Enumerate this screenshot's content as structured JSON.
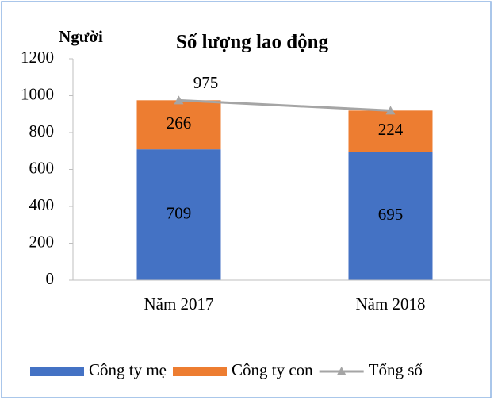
{
  "chart_data": {
    "type": "bar",
    "stacked": true,
    "title": "Số lượng lao động",
    "y_label": "Người",
    "categories": [
      "Năm 2017",
      "Năm 2018"
    ],
    "series": [
      {
        "name": "Công ty mẹ",
        "type": "bar",
        "color": "#4472c4",
        "values": [
          709,
          695
        ]
      },
      {
        "name": "Công ty con",
        "type": "bar",
        "color": "#ed7d31",
        "values": [
          266,
          224
        ]
      },
      {
        "name": "Tổng số",
        "type": "line",
        "color": "#a5a5a5",
        "values": [
          975,
          919
        ],
        "data_labels": [
          true,
          false
        ]
      }
    ],
    "ylim": [
      0,
      1200
    ],
    "yticks": [
      0,
      200,
      400,
      600,
      800,
      1000,
      1200
    ],
    "grid": false,
    "legend": "bottom"
  }
}
